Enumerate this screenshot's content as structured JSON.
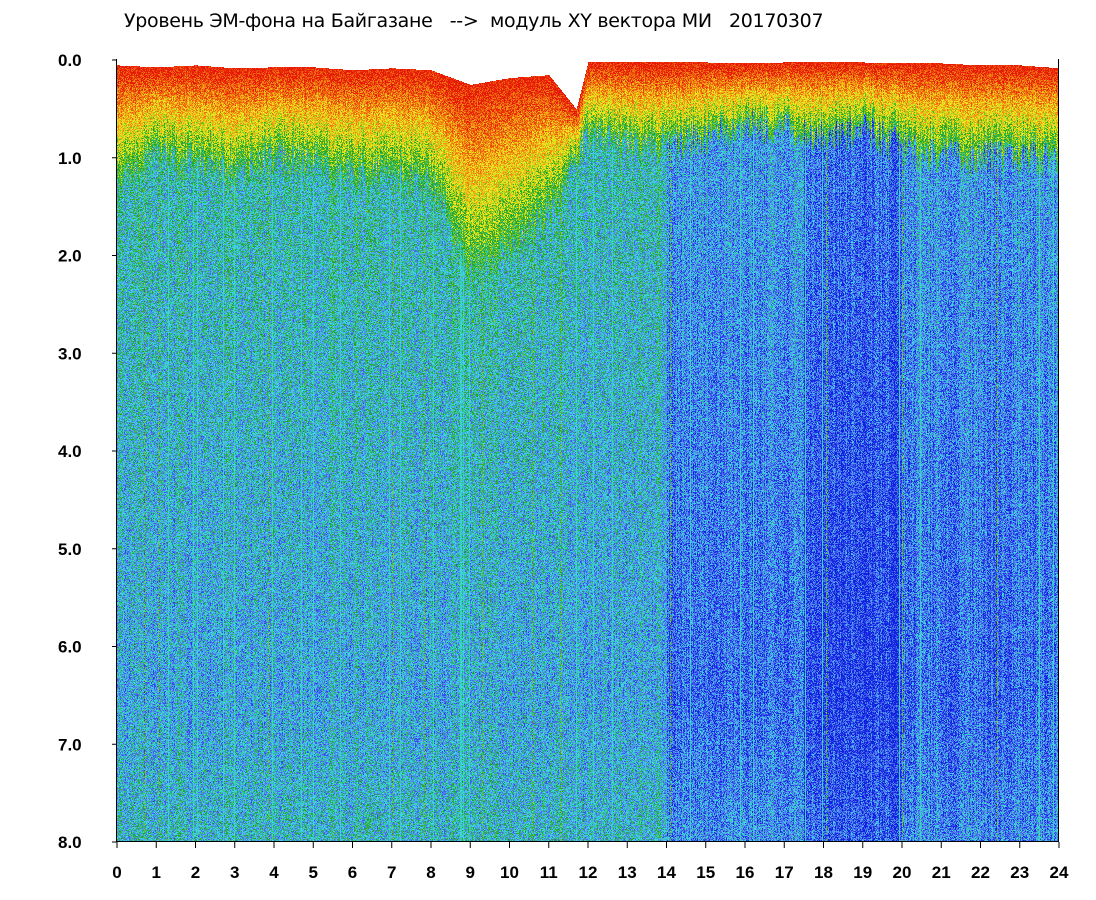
{
  "chart_data": {
    "type": "heatmap",
    "title": "Уровень ЭМ-фона на Байгазане   -->  модуль XY вектора МИ   20170307",
    "xlabel": "",
    "ylabel": "",
    "xlim": [
      0,
      24
    ],
    "ylim": [
      0,
      8
    ],
    "y_inverted": true,
    "x_ticks": [
      "0",
      "1",
      "2",
      "3",
      "4",
      "5",
      "6",
      "7",
      "8",
      "9",
      "10",
      "11",
      "12",
      "13",
      "14",
      "15",
      "16",
      "17",
      "18",
      "19",
      "20",
      "21",
      "22",
      "23",
      "24"
    ],
    "y_ticks": [
      "0.0",
      "1.0",
      "2.0",
      "3.0",
      "4.0",
      "5.0",
      "6.0",
      "7.0",
      "8.0"
    ],
    "grid": false,
    "color_scale": [
      "#1020e0",
      "#5070ee",
      "#40d8e6",
      "#20a020",
      "#f0f020",
      "#f08010",
      "#e81808"
    ],
    "upper_envelope": [
      [
        0,
        0.05
      ],
      [
        1,
        0.07
      ],
      [
        2,
        0.05
      ],
      [
        3,
        0.08
      ],
      [
        4,
        0.07
      ],
      [
        5,
        0.07
      ],
      [
        6,
        0.1
      ],
      [
        7,
        0.08
      ],
      [
        8,
        0.1
      ],
      [
        9,
        0.25
      ],
      [
        10,
        0.18
      ],
      [
        11,
        0.15
      ],
      [
        11.7,
        0.5
      ],
      [
        12,
        0.02
      ],
      [
        13,
        0.02
      ],
      [
        14,
        0.02
      ],
      [
        15,
        0.02
      ],
      [
        16,
        0.03
      ],
      [
        17,
        0.02
      ],
      [
        18,
        0.02
      ],
      [
        19,
        0.02
      ],
      [
        20,
        0.03
      ],
      [
        21,
        0.03
      ],
      [
        22,
        0.05
      ],
      [
        23,
        0.05
      ],
      [
        24,
        0.08
      ]
    ],
    "colored_band_depth": [
      [
        0,
        1.3
      ],
      [
        1,
        1.0
      ],
      [
        2,
        1.1
      ],
      [
        3,
        1.2
      ],
      [
        4,
        1.0
      ],
      [
        5,
        1.1
      ],
      [
        6,
        1.2
      ],
      [
        7,
        1.2
      ],
      [
        8,
        1.3
      ],
      [
        9,
        2.2
      ],
      [
        10,
        2.0
      ],
      [
        11,
        1.6
      ],
      [
        12,
        0.8
      ],
      [
        13,
        0.9
      ],
      [
        14,
        0.9
      ],
      [
        15,
        0.8
      ],
      [
        16,
        0.7
      ],
      [
        17,
        0.7
      ],
      [
        18,
        0.8
      ],
      [
        19,
        0.7
      ],
      [
        20,
        0.9
      ],
      [
        21,
        1.0
      ],
      [
        22,
        1.0
      ],
      [
        23,
        1.0
      ],
      [
        24,
        1.0
      ]
    ]
  }
}
